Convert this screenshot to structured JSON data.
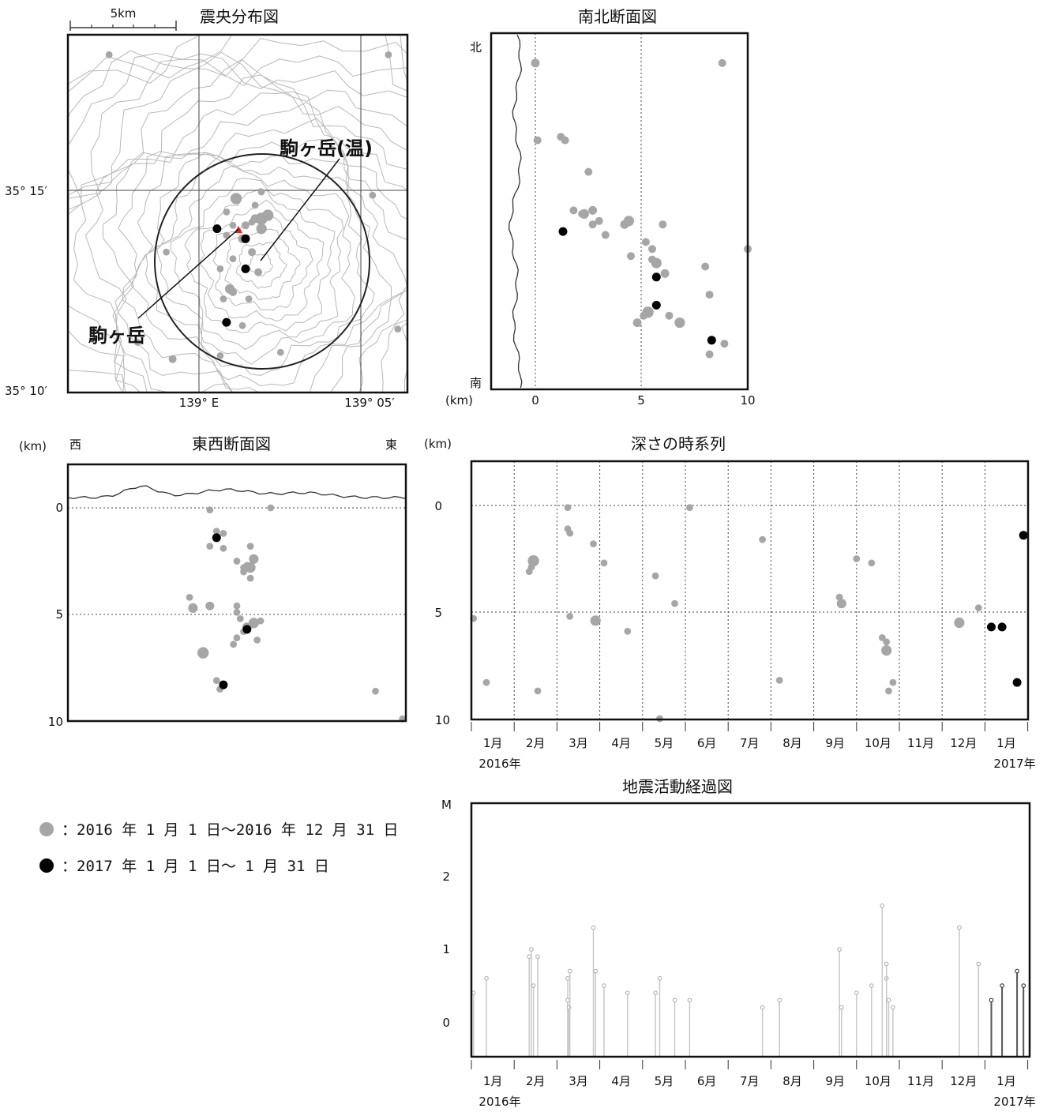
{
  "titles": {
    "map": "震央分布図",
    "ns": "南北断面図",
    "ew": "東西断面図",
    "time_depth": "深さの時系列",
    "activity": "地震活動経過図"
  },
  "map": {
    "scale_label": "5km",
    "lat_labels": [
      "35° 15′",
      "35° 10′"
    ],
    "lon_labels": [
      "139° E",
      "139° 05′"
    ],
    "label_komagatake": "駒ヶ岳",
    "label_onsen": "駒ヶ岳(温)"
  },
  "ns_section": {
    "north": "北",
    "south": "南",
    "unit": "(km)",
    "x_ticks": [
      "0",
      "5",
      "10"
    ]
  },
  "ew_section": {
    "west": "西",
    "east": "東",
    "unit": "(km)",
    "y_ticks": [
      "0",
      "5",
      "10"
    ]
  },
  "time_depth": {
    "unit": "(km)",
    "y_ticks": [
      "0",
      "5",
      "10"
    ]
  },
  "activity": {
    "unit": "M",
    "y_ticks": [
      "0",
      "1",
      "2"
    ]
  },
  "months": [
    "1月",
    "2月",
    "3月",
    "4月",
    "5月",
    "6月",
    "7月",
    "8月",
    "9月",
    "10月",
    "11月",
    "12月",
    "1月"
  ],
  "years": [
    "2016年",
    "2017年"
  ],
  "legend": {
    "gray": "：2016 年 1 月 1 日～2016 年 12 月 31 日",
    "black": "：2017 年 1 月 1 日～ 1 月 31 日"
  },
  "colors": {
    "gray": "#a6a6a6",
    "black": "#000000",
    "marker_red": "#e02020"
  },
  "chart_data": [
    {
      "type": "scatter",
      "title": "震央分布図",
      "xlim": [
        -0.5,
        10.2
      ],
      "ylim": [
        -0.5,
        10.2
      ],
      "series": [
        {
          "color": "gray",
          "x": [
            9.6,
            9.9,
            6.2,
            4.3,
            2.8,
            2.6,
            5.1,
            5.8,
            5.4,
            5.6,
            5.3,
            5.0,
            4.7,
            5.5,
            5.6,
            4.5,
            4.5,
            5.3,
            5.6,
            4.8,
            4.7,
            4.6,
            4.4,
            4.7,
            5.2,
            5.0,
            1.7,
            0.8,
            9.1,
            4.3,
            5.4
          ],
          "y": [
            9.6,
            1.4,
            0.7,
            0.6,
            0.5,
            3.7,
            4.5,
            4.8,
            4.7,
            4.4,
            3.7,
            4.1,
            4.5,
            3.1,
            4.7,
            4.9,
            4.2,
            4.6,
            5.5,
            5.3,
            3.5,
            2.6,
            2.3,
            2.5,
            2.3,
            1.5,
            1.0,
            9.6,
            5.4,
            3.2,
            5.1
          ],
          "size": [
            0.8,
            0.8,
            0.8,
            0.8,
            0.9,
            0.8,
            0.9,
            1.3,
            1.0,
            1.2,
            0.9,
            1.0,
            0.8,
            0.9,
            1.4,
            0.8,
            0.8,
            0.8,
            0.8,
            1.3,
            0.8,
            1.1,
            0.8,
            0.9,
            0.8,
            0.8,
            0.8,
            0.8,
            0.8,
            0.8,
            0.8
          ]
        },
        {
          "color": "black",
          "x": [
            4.2,
            5.1,
            5.1,
            4.5
          ],
          "y": [
            4.4,
            4.1,
            3.2,
            1.6
          ],
          "size": [
            1.0,
            1.0,
            1.0,
            1.0
          ]
        }
      ]
    },
    {
      "type": "scatter",
      "title": "南北断面図",
      "xlabel": "(km)",
      "xlim": [
        -1.7,
        10
      ],
      "x_ticks": [
        0,
        5,
        10
      ],
      "series": [
        {
          "color": "gray",
          "x": [
            0.0,
            8.8,
            0.1,
            1.2,
            1.4,
            2.5,
            1.8,
            2.2,
            2.3,
            2.7,
            2.7,
            3.0,
            3.3,
            4.2,
            4.4,
            6.0,
            5.2,
            5.5,
            4.5,
            5.7,
            6.1,
            5.5,
            8.0,
            8.9,
            8.2,
            5.3,
            4.8,
            5.1,
            6.3,
            6.8,
            10.0,
            8.2
          ],
          "y": [
            9.1,
            9.1,
            6.9,
            7.0,
            6.9,
            6.0,
            4.9,
            4.8,
            4.8,
            4.5,
            4.9,
            4.6,
            4.2,
            4.5,
            4.6,
            4.5,
            4.0,
            3.8,
            3.6,
            3.4,
            3.1,
            3.5,
            3.3,
            1.1,
            2.5,
            2.0,
            1.7,
            1.9,
            1.9,
            1.7,
            3.8,
            0.8
          ],
          "size": [
            1.0,
            0.9,
            0.9,
            0.9,
            0.9,
            0.9,
            0.9,
            0.9,
            1.1,
            0.9,
            1.0,
            0.9,
            0.9,
            1.0,
            1.2,
            0.9,
            0.9,
            0.9,
            0.9,
            1.2,
            1.0,
            0.9,
            0.9,
            0.9,
            0.9,
            1.3,
            1.0,
            0.9,
            0.9,
            1.2,
            0.9,
            0.9
          ]
        },
        {
          "color": "black",
          "x": [
            1.3,
            5.7,
            5.7,
            8.3
          ],
          "y": [
            4.3,
            3.0,
            2.2,
            1.2
          ],
          "size": [
            1.0,
            1.0,
            1.0,
            1.0
          ]
        }
      ]
    },
    {
      "type": "scatter",
      "title": "東西断面図",
      "ylabel": "(km)",
      "ylim": [
        10,
        -1.7
      ],
      "y_ticks": [
        0,
        5,
        10
      ],
      "series": [
        {
          "color": "gray",
          "x": [
            4.2,
            6.0,
            4.4,
            4.6,
            4.2,
            4.6,
            4.2,
            3.7,
            3.6,
            5.0,
            5.4,
            5.2,
            5.3,
            5.4,
            5.5,
            5.2,
            5.4,
            5.0,
            5.0,
            5.1,
            5.7,
            5.5,
            5.3,
            5.2,
            5.0,
            5.6,
            4.9,
            4.0,
            4.4,
            4.5,
            9.9,
            9.1
          ],
          "y": [
            0.1,
            0.0,
            1.1,
            1.2,
            1.8,
            1.9,
            4.6,
            4.7,
            4.2,
            2.5,
            1.8,
            2.8,
            2.7,
            2.8,
            2.4,
            3.0,
            3.3,
            4.6,
            4.9,
            5.2,
            5.3,
            5.4,
            5.6,
            5.8,
            6.1,
            6.2,
            6.4,
            6.8,
            8.1,
            8.5,
            9.9,
            8.6
          ],
          "size": [
            0.8,
            0.8,
            0.8,
            0.8,
            0.8,
            0.8,
            1.0,
            1.1,
            0.8,
            0.8,
            0.8,
            0.8,
            0.8,
            1.2,
            1.1,
            0.8,
            0.8,
            0.8,
            0.8,
            0.8,
            0.8,
            1.2,
            1.1,
            0.8,
            0.8,
            0.8,
            0.8,
            1.3,
            0.8,
            0.8,
            0.8,
            0.8
          ]
        },
        {
          "color": "black",
          "x": [
            4.4,
            5.3,
            4.6
          ],
          "y": [
            1.4,
            5.7,
            8.3
          ],
          "size": [
            1.0,
            1.0,
            1.0
          ]
        }
      ]
    },
    {
      "type": "scatter",
      "title": "深さの時系列",
      "ylabel": "(km)",
      "x_unit": "month index (0 = 2016-01-01)",
      "ylim": [
        10,
        -2
      ],
      "y_ticks": [
        0,
        5,
        10
      ],
      "series": [
        {
          "color": "gray",
          "x": [
            0.05,
            0.35,
            1.35,
            1.4,
            1.45,
            1.55,
            2.25,
            2.25,
            2.3,
            2.3,
            2.85,
            2.9,
            3.1,
            3.65,
            4.3,
            4.4,
            4.75,
            5.1,
            6.8,
            7.2,
            8.6,
            8.65,
            9.0,
            9.35,
            9.6,
            9.7,
            9.7,
            9.75,
            9.85,
            11.4,
            11.85
          ],
          "y": [
            5.3,
            8.3,
            3.1,
            2.9,
            2.6,
            8.7,
            0.1,
            1.1,
            1.3,
            5.2,
            1.8,
            5.4,
            2.7,
            5.9,
            3.3,
            10.0,
            4.6,
            0.1,
            1.6,
            8.2,
            4.3,
            4.6,
            2.5,
            2.7,
            6.2,
            6.4,
            6.8,
            8.7,
            8.3,
            5.5,
            4.8
          ],
          "size": [
            0.8,
            0.8,
            0.8,
            0.8,
            1.3,
            0.8,
            0.8,
            0.8,
            0.8,
            0.8,
            0.8,
            1.2,
            0.8,
            0.8,
            0.8,
            0.8,
            0.8,
            0.8,
            0.8,
            0.8,
            0.8,
            1.1,
            0.8,
            0.8,
            0.8,
            0.8,
            1.2,
            0.8,
            0.8,
            1.2,
            0.8
          ]
        },
        {
          "color": "black",
          "x": [
            12.15,
            12.4,
            12.75,
            12.9
          ],
          "y": [
            5.7,
            5.7,
            8.3,
            1.4
          ],
          "size": [
            1.0,
            1.0,
            1.0,
            1.0
          ]
        }
      ]
    },
    {
      "type": "stem",
      "title": "地震活動経過図",
      "ylabel": "M",
      "ylim": [
        -0.5,
        3
      ],
      "y_ticks": [
        0,
        1,
        2
      ],
      "series": [
        {
          "color": "gray",
          "x": [
            0.05,
            0.35,
            1.35,
            1.4,
            1.45,
            1.55,
            2.25,
            2.25,
            2.28,
            2.3,
            2.85,
            2.9,
            3.1,
            3.65,
            4.3,
            4.4,
            4.75,
            5.1,
            6.8,
            7.2,
            8.6,
            8.65,
            9.0,
            9.35,
            9.6,
            9.7,
            9.7,
            9.75,
            9.85,
            11.4,
            11.85
          ],
          "y": [
            0.4,
            0.6,
            0.9,
            1.0,
            0.5,
            0.9,
            0.6,
            0.3,
            0.2,
            0.7,
            1.3,
            0.7,
            0.5,
            0.4,
            0.4,
            0.6,
            0.3,
            0.3,
            0.2,
            0.3,
            1.0,
            0.2,
            0.4,
            0.5,
            1.6,
            0.6,
            0.8,
            0.3,
            0.2,
            1.3,
            0.8
          ]
        },
        {
          "color": "black",
          "x": [
            12.15,
            12.4,
            12.75,
            12.9
          ],
          "y": [
            0.3,
            0.5,
            0.7,
            0.5
          ]
        }
      ]
    }
  ]
}
